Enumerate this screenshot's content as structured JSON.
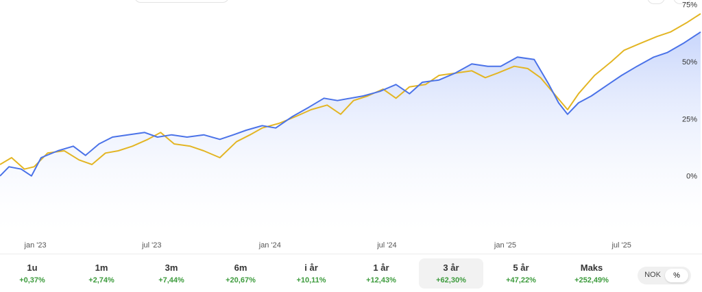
{
  "chart_data": {
    "type": "line",
    "y_axis": {
      "ticks": [
        0,
        25,
        50,
        75
      ],
      "tick_labels": [
        "0%",
        "25%",
        "50%",
        "75%"
      ],
      "range": [
        -25,
        77
      ],
      "position": "right"
    },
    "x_axis": {
      "range": [
        "2022-11-07",
        "2025-11-01"
      ],
      "ticks": [
        {
          "label": "jan '23",
          "date": "2023-01-01"
        },
        {
          "label": "jul '23",
          "date": "2023-07-01"
        },
        {
          "label": "jan '24",
          "date": "2024-01-01"
        },
        {
          "label": "jul '24",
          "date": "2024-07-01"
        },
        {
          "label": "jan '25",
          "date": "2025-01-01"
        },
        {
          "label": "jul '25",
          "date": "2025-07-01"
        }
      ]
    },
    "grid": false,
    "series": [
      {
        "color": "#4a72e8",
        "area_fill": true,
        "points": [
          [
            "2022-11-07",
            0
          ],
          [
            "2022-11-21",
            4
          ],
          [
            "2022-12-10",
            3
          ],
          [
            "2022-12-26",
            0
          ],
          [
            "2023-01-10",
            8
          ],
          [
            "2023-02-05",
            11
          ],
          [
            "2023-03-01",
            13
          ],
          [
            "2023-03-20",
            9
          ],
          [
            "2023-04-10",
            14
          ],
          [
            "2023-05-01",
            17
          ],
          [
            "2023-05-25",
            18
          ],
          [
            "2023-06-20",
            19
          ],
          [
            "2023-07-10",
            17
          ],
          [
            "2023-08-01",
            18
          ],
          [
            "2023-08-25",
            17
          ],
          [
            "2023-09-20",
            18
          ],
          [
            "2023-10-15",
            16
          ],
          [
            "2023-11-05",
            18
          ],
          [
            "2023-11-25",
            20
          ],
          [
            "2023-12-20",
            22
          ],
          [
            "2024-01-10",
            21
          ],
          [
            "2024-02-05",
            26
          ],
          [
            "2024-03-01",
            30
          ],
          [
            "2024-03-25",
            34
          ],
          [
            "2024-04-15",
            33
          ],
          [
            "2024-05-05",
            34
          ],
          [
            "2024-05-25",
            35
          ],
          [
            "2024-06-20",
            37
          ],
          [
            "2024-07-15",
            40
          ],
          [
            "2024-08-05",
            36
          ],
          [
            "2024-08-25",
            41
          ],
          [
            "2024-09-20",
            42
          ],
          [
            "2024-10-15",
            45
          ],
          [
            "2024-11-10",
            49
          ],
          [
            "2024-12-05",
            48
          ],
          [
            "2024-12-25",
            48
          ],
          [
            "2025-01-20",
            52
          ],
          [
            "2025-02-15",
            51
          ],
          [
            "2025-03-10",
            40
          ],
          [
            "2025-03-25",
            32
          ],
          [
            "2025-04-08",
            27
          ],
          [
            "2025-04-25",
            32
          ],
          [
            "2025-05-15",
            35
          ],
          [
            "2025-06-10",
            40
          ],
          [
            "2025-07-01",
            44
          ],
          [
            "2025-07-25",
            48
          ],
          [
            "2025-08-20",
            52
          ],
          [
            "2025-09-10",
            54
          ],
          [
            "2025-10-05",
            58
          ],
          [
            "2025-11-01",
            63
          ]
        ]
      },
      {
        "color": "#e3b523",
        "area_fill": false,
        "points": [
          [
            "2022-11-07",
            5
          ],
          [
            "2022-11-25",
            8
          ],
          [
            "2022-12-15",
            3
          ],
          [
            "2022-12-30",
            4
          ],
          [
            "2023-01-20",
            10
          ],
          [
            "2023-02-15",
            11
          ],
          [
            "2023-03-10",
            7
          ],
          [
            "2023-03-30",
            5
          ],
          [
            "2023-04-20",
            10
          ],
          [
            "2023-05-10",
            11
          ],
          [
            "2023-06-01",
            13
          ],
          [
            "2023-06-25",
            16
          ],
          [
            "2023-07-15",
            19
          ],
          [
            "2023-08-05",
            14
          ],
          [
            "2023-08-30",
            13
          ],
          [
            "2023-09-20",
            11
          ],
          [
            "2023-10-15",
            8
          ],
          [
            "2023-11-10",
            15
          ],
          [
            "2023-12-01",
            18
          ],
          [
            "2023-12-20",
            21
          ],
          [
            "2024-01-15",
            23
          ],
          [
            "2024-02-10",
            26
          ],
          [
            "2024-03-05",
            29
          ],
          [
            "2024-03-30",
            31
          ],
          [
            "2024-04-20",
            27
          ],
          [
            "2024-05-10",
            33
          ],
          [
            "2024-06-01",
            35
          ],
          [
            "2024-06-25",
            38
          ],
          [
            "2024-07-15",
            34
          ],
          [
            "2024-08-05",
            39
          ],
          [
            "2024-08-30",
            40
          ],
          [
            "2024-09-20",
            44
          ],
          [
            "2024-10-15",
            45
          ],
          [
            "2024-11-10",
            46
          ],
          [
            "2024-12-01",
            43
          ],
          [
            "2024-12-20",
            45
          ],
          [
            "2025-01-15",
            48
          ],
          [
            "2025-02-05",
            47
          ],
          [
            "2025-02-25",
            43
          ],
          [
            "2025-03-15",
            37
          ],
          [
            "2025-04-08",
            29
          ],
          [
            "2025-04-25",
            36
          ],
          [
            "2025-05-20",
            44
          ],
          [
            "2025-06-15",
            50
          ],
          [
            "2025-07-05",
            55
          ],
          [
            "2025-07-30",
            58
          ],
          [
            "2025-08-25",
            61
          ],
          [
            "2025-09-15",
            63
          ],
          [
            "2025-10-10",
            67
          ],
          [
            "2025-11-01",
            71
          ]
        ]
      }
    ]
  },
  "periods": [
    {
      "label": "1u",
      "value": "+0,37%",
      "active": false
    },
    {
      "label": "1m",
      "value": "+2,74%",
      "active": false
    },
    {
      "label": "3m",
      "value": "+7,44%",
      "active": false
    },
    {
      "label": "6m",
      "value": "+20,67%",
      "active": false
    },
    {
      "label": "i år",
      "value": "+10,11%",
      "active": false
    },
    {
      "label": "1 år",
      "value": "+12,43%",
      "active": false
    },
    {
      "label": "3 år",
      "value": "+62,30%",
      "active": true
    },
    {
      "label": "5 år",
      "value": "+47,22%",
      "active": false
    },
    {
      "label": "Maks",
      "value": "+252,49%",
      "active": false
    }
  ],
  "toggle": {
    "nok_label": "NOK",
    "pct_label": "%",
    "selected": "%"
  },
  "colors": {
    "primary_line": "#4a72e8",
    "secondary_line": "#e3b523",
    "positive": "#3c9b3c",
    "area_top": "#c6d4fb"
  }
}
